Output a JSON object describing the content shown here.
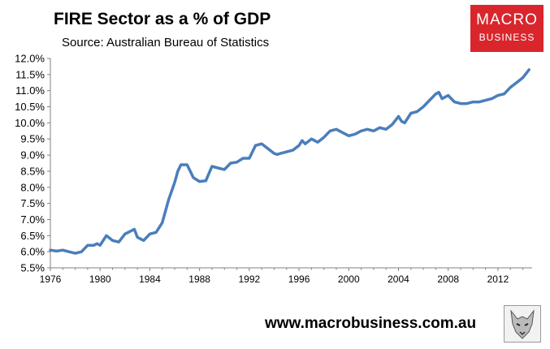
{
  "header": {
    "title": "FIRE Sector as a % of GDP",
    "subtitle": "Source: Australian Bureau of Statistics"
  },
  "logo": {
    "line1": "MACRO",
    "line2": "BUSINESS"
  },
  "footer": {
    "website": "www.macrobusiness.com.au"
  },
  "colors": {
    "line": "#4a7ebb",
    "brand": "#d8262c"
  },
  "icons": {
    "footer_logo": "wolf-icon"
  },
  "chart_data": {
    "type": "line",
    "title": "FIRE Sector as a % of GDP",
    "subtitle": "Source: Australian Bureau of Statistics",
    "xlabel": "",
    "ylabel": "",
    "xlim": [
      1976,
      2014.75
    ],
    "ylim": [
      5.5,
      12.0
    ],
    "grid": false,
    "legend": "none",
    "x_ticks": [
      1976,
      1980,
      1984,
      1988,
      1992,
      1996,
      2000,
      2004,
      2008,
      2012
    ],
    "x_tick_labels": [
      "1976",
      "1980",
      "1984",
      "1988",
      "1992",
      "1996",
      "2000",
      "2004",
      "2008",
      "2012"
    ],
    "y_ticks": [
      5.5,
      6.0,
      6.5,
      7.0,
      7.5,
      8.0,
      8.5,
      9.0,
      9.5,
      10.0,
      10.5,
      11.0,
      11.5,
      12.0
    ],
    "y_tick_labels": [
      "5.5%",
      "6.0%",
      "6.5%",
      "7.0%",
      "7.5%",
      "8.0%",
      "8.5%",
      "9.0%",
      "9.5%",
      "10.0%",
      "10.5%",
      "11.0%",
      "11.5%",
      "12.0%"
    ],
    "series": [
      {
        "x": [
          1976.0,
          1976.5,
          1977.0,
          1977.5,
          1978.0,
          1978.5,
          1978.75,
          1979.0,
          1979.5,
          1979.75,
          1980.0,
          1980.5,
          1981.0,
          1981.5,
          1982.0,
          1982.5,
          1982.75,
          1983.0,
          1983.5,
          1983.75,
          1984.0,
          1984.5,
          1985.0,
          1985.5,
          1986.0,
          1986.25,
          1986.5,
          1987.0,
          1987.5,
          1988.0,
          1988.5,
          1989.0,
          1989.5,
          1990.0,
          1990.5,
          1991.0,
          1991.5,
          1992.0,
          1992.5,
          1993.0,
          1993.5,
          1994.0,
          1994.25,
          1994.5,
          1995.0,
          1995.5,
          1996.0,
          1996.25,
          1996.5,
          1997.0,
          1997.5,
          1998.0,
          1998.5,
          1999.0,
          1999.5,
          2000.0,
          2000.5,
          2001.0,
          2001.5,
          2002.0,
          2002.5,
          2003.0,
          2003.5,
          2004.0,
          2004.25,
          2004.5,
          2005.0,
          2005.5,
          2006.0,
          2006.5,
          2007.0,
          2007.25,
          2007.5,
          2008.0,
          2008.5,
          2009.0,
          2009.5,
          2010.0,
          2010.5,
          2011.0,
          2011.5,
          2012.0,
          2012.5,
          2013.0,
          2013.5,
          2014.0,
          2014.5
        ],
        "values": [
          6.05,
          6.02,
          6.05,
          6.0,
          5.95,
          6.0,
          6.1,
          6.2,
          6.2,
          6.25,
          6.2,
          6.5,
          6.35,
          6.3,
          6.55,
          6.65,
          6.7,
          6.45,
          6.35,
          6.45,
          6.55,
          6.6,
          6.9,
          7.6,
          8.15,
          8.5,
          8.7,
          8.7,
          8.3,
          8.18,
          8.2,
          8.65,
          8.6,
          8.55,
          8.75,
          8.78,
          8.9,
          8.9,
          9.3,
          9.35,
          9.2,
          9.05,
          9.02,
          9.05,
          9.1,
          9.15,
          9.3,
          9.45,
          9.35,
          9.5,
          9.4,
          9.55,
          9.75,
          9.8,
          9.7,
          9.6,
          9.65,
          9.75,
          9.8,
          9.75,
          9.85,
          9.8,
          9.95,
          10.2,
          10.05,
          10.0,
          10.3,
          10.35,
          10.5,
          10.7,
          10.9,
          10.95,
          10.75,
          10.85,
          10.65,
          10.6,
          10.6,
          10.65,
          10.65,
          10.7,
          10.75,
          10.85,
          10.9,
          11.1,
          11.25,
          11.4,
          11.65
        ]
      }
    ]
  }
}
